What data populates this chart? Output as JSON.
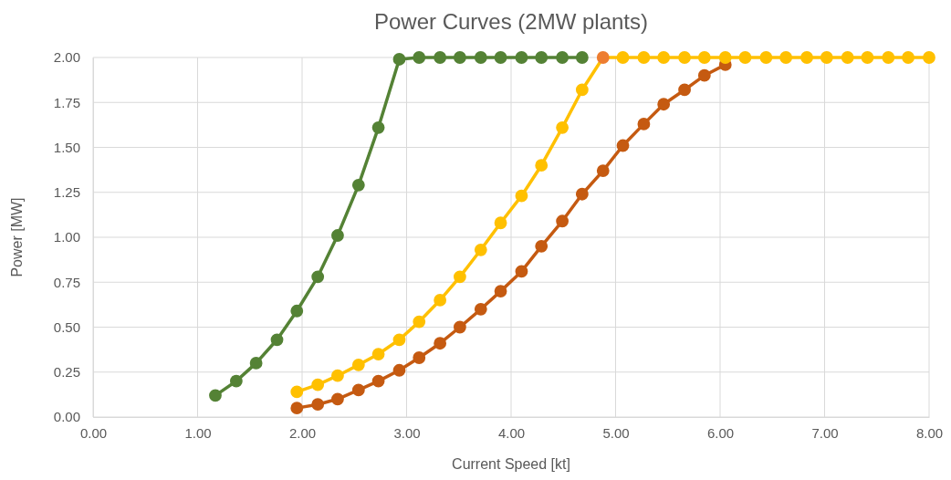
{
  "chart_data": {
    "type": "line",
    "title": "Power Curves (2MW plants)",
    "xlabel": "Current Speed [kt]",
    "ylabel": "Power [MW]",
    "xlim": [
      0,
      8
    ],
    "xticks": [
      {
        "value": 0,
        "label": "0.00"
      },
      {
        "value": 1,
        "label": "1.00"
      },
      {
        "value": 2,
        "label": "2.00"
      },
      {
        "value": 3,
        "label": "3.00"
      },
      {
        "value": 4,
        "label": "4.00"
      },
      {
        "value": 5,
        "label": "5.00"
      },
      {
        "value": 6,
        "label": "6.00"
      },
      {
        "value": 7,
        "label": "7.00"
      },
      {
        "value": 8,
        "label": "8.00"
      }
    ],
    "ylim": [
      0,
      2
    ],
    "yticks": [
      {
        "value": 0,
        "label": "0.00"
      },
      {
        "value": 0.25,
        "label": "0.25"
      },
      {
        "value": 0.5,
        "label": "0.50"
      },
      {
        "value": 0.75,
        "label": "0.75"
      },
      {
        "value": 1,
        "label": "1.00"
      },
      {
        "value": 1.25,
        "label": "1.25"
      },
      {
        "value": 1.5,
        "label": "1.50"
      },
      {
        "value": 1.75,
        "label": "1.75"
      },
      {
        "value": 2,
        "label": "2.00"
      }
    ],
    "grid": true,
    "marker": "circle",
    "line_style": "solid",
    "series": [
      {
        "color": "#548235",
        "x": [
          1.17,
          1.37,
          1.56,
          1.76,
          1.95,
          2.15,
          2.34,
          2.54,
          2.73,
          2.93,
          3.12,
          3.32,
          3.51,
          3.71,
          3.9,
          4.1,
          4.29,
          4.49,
          4.68
        ],
        "values": [
          0.12,
          0.2,
          0.3,
          0.43,
          0.59,
          0.78,
          1.01,
          1.29,
          1.61,
          1.99,
          2,
          2,
          2,
          2,
          2,
          2,
          2,
          2,
          2
        ]
      },
      {
        "color": "#c55a11",
        "x": [
          1.95,
          2.15,
          2.34,
          2.54,
          2.73,
          2.93,
          3.12,
          3.32,
          3.51,
          3.71,
          3.9,
          4.1,
          4.29,
          4.49,
          4.68,
          4.88,
          5.07,
          5.27,
          5.46,
          5.66,
          5.85,
          6.05
        ],
        "values": [
          0.05,
          0.07,
          0.1,
          0.15,
          0.2,
          0.26,
          0.33,
          0.41,
          0.5,
          0.6,
          0.7,
          0.81,
          0.95,
          1.09,
          1.24,
          1.37,
          1.51,
          1.63,
          1.74,
          1.82,
          1.9,
          1.96
        ]
      },
      {
        "color": "#ffc000",
        "x": [
          1.95,
          2.15,
          2.34,
          2.54,
          2.73,
          2.93,
          3.12,
          3.32,
          3.51,
          3.71,
          3.9,
          4.1,
          4.29,
          4.49,
          4.68,
          4.88,
          5.07,
          5.27,
          5.46,
          5.66,
          5.85,
          6.05,
          6.24,
          6.44,
          6.63,
          6.83,
          7.02,
          7.22,
          7.41,
          7.61,
          7.8,
          8
        ],
        "values": [
          0.14,
          0.18,
          0.23,
          0.29,
          0.35,
          0.43,
          0.53,
          0.65,
          0.78,
          0.93,
          1.08,
          1.23,
          1.4,
          1.61,
          1.82,
          2,
          2,
          2,
          2,
          2,
          2,
          2,
          2,
          2,
          2,
          2,
          2,
          2,
          2,
          2,
          2,
          2
        ],
        "colors": [
          "#ffc000",
          "#ffc000",
          "#ffc000",
          "#ffc000",
          "#ffc000",
          "#ffc000",
          "#ffc000",
          "#ffc000",
          "#ffc000",
          "#ffc000",
          "#ffc000",
          "#ffc000",
          "#ffc000",
          "#ffc000",
          "#ffc000",
          "#ed7d31",
          "#ffc000",
          "#ffc000",
          "#ffc000",
          "#ffc000",
          "#ffc000",
          "#ffc000",
          "#ffc000",
          "#ffc000",
          "#ffc000",
          "#ffc000",
          "#ffc000",
          "#ffc000",
          "#ffc000",
          "#ffc000",
          "#ffc000",
          "#ffc000"
        ]
      }
    ]
  }
}
